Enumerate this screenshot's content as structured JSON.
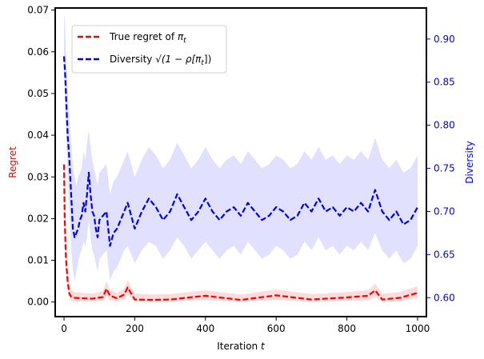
{
  "chart_data": {
    "type": "line",
    "xlabel": "Iteration t",
    "xlabel_parts": {
      "text": "Iteration",
      "var": "t"
    },
    "ylabel_left": "Regret",
    "ylabel_right": "Diversity",
    "xlim": [
      -25,
      1025
    ],
    "ylim_left": [
      -0.0035,
      0.0705
    ],
    "ylim_right": [
      0.578,
      0.936
    ],
    "x_ticks": [
      0,
      200,
      400,
      600,
      800,
      1000
    ],
    "x_tick_labels": [
      "0",
      "200",
      "400",
      "600",
      "800",
      "1000"
    ],
    "y_left_ticks": [
      0.0,
      0.01,
      0.02,
      0.03,
      0.04,
      0.05,
      0.06,
      0.07
    ],
    "y_left_tick_labels": [
      "0.00",
      "0.01",
      "0.02",
      "0.03",
      "0.04",
      "0.05",
      "0.06",
      "0.07"
    ],
    "y_right_ticks": [
      0.6,
      0.65,
      0.7,
      0.75,
      0.8,
      0.85,
      0.9
    ],
    "y_right_tick_labels": [
      "0.60",
      "0.65",
      "0.70",
      "0.75",
      "0.80",
      "0.85",
      "0.90"
    ],
    "legend_position": "top-left",
    "grid": false,
    "colors": {
      "regret": "#ff0000",
      "regret_band": "#ffcccc",
      "diversity": "#0000ff",
      "diversity_band": "#c8c8ff",
      "left_axis_label": "#ff0000",
      "right_axis": "#0000ff"
    },
    "series": [
      {
        "name": "True regret of π_t",
        "legend_parts": {
          "text": "True regret of ",
          "math": "π",
          "sub": "t"
        },
        "axis": "left",
        "style": "dashed",
        "color": "#ff0000",
        "x": [
          0,
          2,
          5,
          10,
          15,
          20,
          30,
          50,
          80,
          110,
          120,
          130,
          150,
          170,
          180,
          200,
          250,
          300,
          400,
          500,
          600,
          700,
          800,
          860,
          880,
          900,
          950,
          1000
        ],
        "values": [
          0.033,
          0.02,
          0.011,
          0.005,
          0.002,
          0.0013,
          0.001,
          0.0009,
          0.0008,
          0.0012,
          0.0032,
          0.0015,
          0.0009,
          0.0018,
          0.0035,
          0.0006,
          0.0005,
          0.0006,
          0.0015,
          0.0005,
          0.0016,
          0.0006,
          0.0011,
          0.0015,
          0.0028,
          0.0006,
          0.001,
          0.0022
        ],
        "band_lower": [
          0.03,
          0.016,
          0.008,
          0.003,
          0.0008,
          0.0003,
          0.0002,
          0.0002,
          0.0002,
          0.0003,
          0.0015,
          0.0004,
          0.0002,
          0.0006,
          0.0018,
          0.0001,
          0.0001,
          0.0001,
          0.0005,
          0.0001,
          0.0005,
          0.0001,
          0.0003,
          0.0004,
          0.0012,
          0.0001,
          0.0002,
          0.001
        ],
        "band_upper": [
          0.037,
          0.026,
          0.015,
          0.008,
          0.0045,
          0.003,
          0.0024,
          0.0022,
          0.002,
          0.0026,
          0.005,
          0.003,
          0.0022,
          0.0032,
          0.0052,
          0.002,
          0.0018,
          0.0019,
          0.0028,
          0.0018,
          0.003,
          0.0019,
          0.0024,
          0.0028,
          0.0044,
          0.002,
          0.0024,
          0.0038
        ]
      },
      {
        "name": "Diversity √(1 − ρ[π_t])",
        "legend_parts": {
          "text": "Diversity ",
          "math": "√(1 − ρ[π",
          "sub": "t",
          "close": "])"
        },
        "axis": "right",
        "style": "dashed",
        "color": "#0000ff",
        "x": [
          0,
          3,
          6,
          10,
          15,
          20,
          25,
          30,
          35,
          40,
          45,
          50,
          55,
          60,
          65,
          70,
          75,
          80,
          85,
          90,
          95,
          100,
          110,
          120,
          130,
          140,
          150,
          160,
          170,
          180,
          190,
          200,
          220,
          240,
          260,
          280,
          300,
          320,
          340,
          360,
          380,
          400,
          420,
          440,
          460,
          480,
          500,
          520,
          540,
          560,
          580,
          600,
          620,
          640,
          660,
          680,
          700,
          720,
          740,
          760,
          780,
          800,
          820,
          840,
          860,
          880,
          900,
          920,
          940,
          960,
          980,
          1000
        ],
        "values": [
          0.88,
          0.86,
          0.83,
          0.79,
          0.76,
          0.72,
          0.68,
          0.67,
          0.675,
          0.68,
          0.69,
          0.695,
          0.71,
          0.7,
          0.72,
          0.745,
          0.72,
          0.7,
          0.695,
          0.68,
          0.67,
          0.69,
          0.695,
          0.7,
          0.66,
          0.675,
          0.68,
          0.69,
          0.7,
          0.71,
          0.695,
          0.68,
          0.7,
          0.715,
          0.705,
          0.69,
          0.7,
          0.72,
          0.705,
          0.69,
          0.7,
          0.715,
          0.7,
          0.69,
          0.7,
          0.705,
          0.695,
          0.71,
          0.7,
          0.69,
          0.695,
          0.705,
          0.7,
          0.69,
          0.695,
          0.71,
          0.7,
          0.715,
          0.7,
          0.705,
          0.695,
          0.705,
          0.7,
          0.71,
          0.7,
          0.725,
          0.7,
          0.69,
          0.7,
          0.685,
          0.69,
          0.705
        ],
        "band_lower": [
          0.86,
          0.83,
          0.79,
          0.74,
          0.7,
          0.66,
          0.63,
          0.62,
          0.63,
          0.64,
          0.65,
          0.655,
          0.665,
          0.66,
          0.67,
          0.69,
          0.67,
          0.655,
          0.65,
          0.64,
          0.63,
          0.645,
          0.65,
          0.655,
          0.62,
          0.63,
          0.635,
          0.645,
          0.655,
          0.66,
          0.65,
          0.64,
          0.655,
          0.665,
          0.66,
          0.645,
          0.655,
          0.67,
          0.66,
          0.645,
          0.655,
          0.665,
          0.655,
          0.645,
          0.655,
          0.66,
          0.65,
          0.665,
          0.655,
          0.645,
          0.65,
          0.66,
          0.655,
          0.645,
          0.65,
          0.665,
          0.655,
          0.67,
          0.655,
          0.66,
          0.65,
          0.66,
          0.655,
          0.665,
          0.655,
          0.675,
          0.655,
          0.645,
          0.655,
          0.64,
          0.645,
          0.66
        ],
        "band_upper": [
          0.93,
          0.915,
          0.88,
          0.84,
          0.81,
          0.78,
          0.75,
          0.74,
          0.73,
          0.74,
          0.745,
          0.75,
          0.77,
          0.76,
          0.78,
          0.795,
          0.775,
          0.76,
          0.75,
          0.74,
          0.73,
          0.745,
          0.75,
          0.755,
          0.72,
          0.735,
          0.74,
          0.75,
          0.76,
          0.77,
          0.755,
          0.74,
          0.76,
          0.775,
          0.765,
          0.75,
          0.76,
          0.78,
          0.765,
          0.75,
          0.76,
          0.775,
          0.76,
          0.75,
          0.76,
          0.765,
          0.755,
          0.77,
          0.76,
          0.75,
          0.755,
          0.765,
          0.76,
          0.75,
          0.755,
          0.77,
          0.76,
          0.775,
          0.76,
          0.765,
          0.755,
          0.765,
          0.76,
          0.77,
          0.76,
          0.785,
          0.76,
          0.75,
          0.76,
          0.745,
          0.75,
          0.765
        ]
      }
    ]
  }
}
